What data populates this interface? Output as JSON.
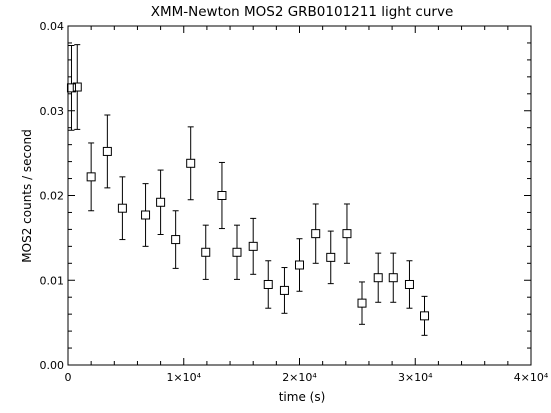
{
  "chart_data": {
    "type": "scatter",
    "title": "XMM-Newton MOS2 GRB0101211 light curve",
    "xlabel": "time (s)",
    "ylabel": "MOS2 counts / second",
    "xlim": [
      0,
      40000
    ],
    "ylim": [
      0,
      0.04
    ],
    "x_ticks": [
      {
        "value": 0,
        "label": "0"
      },
      {
        "value": 10000,
        "label": "1×10⁴"
      },
      {
        "value": 20000,
        "label": "2×10⁴"
      },
      {
        "value": 30000,
        "label": "3×10⁴"
      },
      {
        "value": 40000,
        "label": "4×10⁴"
      }
    ],
    "y_ticks": [
      {
        "value": 0,
        "label": "0.00"
      },
      {
        "value": 0.01,
        "label": "0.01"
      },
      {
        "value": 0.02,
        "label": "0.02"
      },
      {
        "value": 0.03,
        "label": "0.03"
      },
      {
        "value": 0.04,
        "label": "0.04"
      }
    ],
    "grid": false,
    "marker": "open-square",
    "points": [
      {
        "x": 300,
        "y": 0.0327,
        "yerr": 0.005
      },
      {
        "x": 800,
        "y": 0.0328,
        "yerr": 0.005
      },
      {
        "x": 2000,
        "y": 0.0222,
        "yerr": 0.004
      },
      {
        "x": 3400,
        "y": 0.0252,
        "yerr": 0.0043
      },
      {
        "x": 4700,
        "y": 0.0185,
        "yerr": 0.0037
      },
      {
        "x": 6700,
        "y": 0.0177,
        "yerr": 0.0037
      },
      {
        "x": 8000,
        "y": 0.0192,
        "yerr": 0.0038
      },
      {
        "x": 9300,
        "y": 0.0148,
        "yerr": 0.0034
      },
      {
        "x": 10600,
        "y": 0.0238,
        "yerr": 0.0043
      },
      {
        "x": 11900,
        "y": 0.0133,
        "yerr": 0.0032
      },
      {
        "x": 13300,
        "y": 0.02,
        "yerr": 0.0039
      },
      {
        "x": 14600,
        "y": 0.0133,
        "yerr": 0.0032
      },
      {
        "x": 16000,
        "y": 0.014,
        "yerr": 0.0033
      },
      {
        "x": 17300,
        "y": 0.0095,
        "yerr": 0.0028
      },
      {
        "x": 18700,
        "y": 0.0088,
        "yerr": 0.0027
      },
      {
        "x": 20000,
        "y": 0.0118,
        "yerr": 0.0031
      },
      {
        "x": 21400,
        "y": 0.0155,
        "yerr": 0.0035
      },
      {
        "x": 22700,
        "y": 0.0127,
        "yerr": 0.0031
      },
      {
        "x": 24100,
        "y": 0.0155,
        "yerr": 0.0035
      },
      {
        "x": 25400,
        "y": 0.0073,
        "yerr": 0.0025
      },
      {
        "x": 26800,
        "y": 0.0103,
        "yerr": 0.0029
      },
      {
        "x": 28100,
        "y": 0.0103,
        "yerr": 0.0029
      },
      {
        "x": 29500,
        "y": 0.0095,
        "yerr": 0.0028
      },
      {
        "x": 30800,
        "y": 0.0058,
        "yerr": 0.0023
      }
    ],
    "colors": {
      "ink": "#000000",
      "background": "#ffffff"
    }
  }
}
